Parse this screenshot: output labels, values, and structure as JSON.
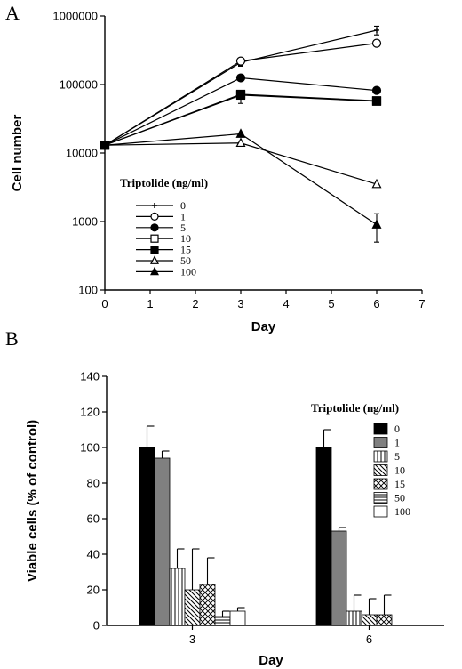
{
  "chart_data": [
    {
      "panel": "A",
      "type": "line",
      "scale_y": "log",
      "xlabel": "Day",
      "ylabel": "Cell number",
      "xlim": [
        0,
        7
      ],
      "ylim": [
        100,
        1000000
      ],
      "xticks": [
        "0",
        "1",
        "2",
        "3",
        "4",
        "5",
        "6",
        "7"
      ],
      "yticks": [
        "100",
        "1000",
        "10000",
        "100000",
        "1000000"
      ],
      "legend_title": "Triptolide (ng/ml)",
      "legend_position": "center-left",
      "x": [
        0,
        3,
        6
      ],
      "series": [
        {
          "name": "0",
          "marker": "cross",
          "values": [
            13000,
            210000,
            620000
          ],
          "err_up": [
            0,
            20000,
            90000
          ],
          "err_down": [
            0,
            20000,
            90000
          ]
        },
        {
          "name": "1",
          "marker": "circle-open",
          "values": [
            13000,
            220000,
            400000
          ],
          "err_up": [
            0,
            0,
            0
          ],
          "err_down": [
            0,
            35000,
            0
          ]
        },
        {
          "name": "5",
          "marker": "circle-filled",
          "values": [
            13000,
            125000,
            82000
          ],
          "err_up": [
            0,
            0,
            0
          ],
          "err_down": [
            0,
            0,
            0
          ]
        },
        {
          "name": "10",
          "marker": "square-open",
          "values": [
            13000,
            70000,
            57000
          ],
          "err_up": [
            0,
            0,
            0
          ],
          "err_down": [
            0,
            17000,
            0
          ]
        },
        {
          "name": "15",
          "marker": "square-filled",
          "values": [
            13000,
            72000,
            58000
          ],
          "err_up": [
            0,
            0,
            0
          ],
          "err_down": [
            0,
            0,
            0
          ]
        },
        {
          "name": "50",
          "marker": "triangle-open",
          "values": [
            13000,
            14000,
            3500
          ],
          "err_up": [
            0,
            0,
            0
          ],
          "err_down": [
            0,
            0,
            0
          ]
        },
        {
          "name": "100",
          "marker": "triangle-filled",
          "values": [
            13000,
            19000,
            900
          ],
          "err_up": [
            0,
            0,
            400
          ],
          "err_down": [
            0,
            0,
            400
          ]
        }
      ]
    },
    {
      "panel": "B",
      "type": "bar",
      "xlabel": "Day",
      "ylabel": "Viable cells (% of control)",
      "categories": [
        "3",
        "6"
      ],
      "ylim": [
        0,
        140
      ],
      "yticks": [
        "0",
        "20",
        "40",
        "60",
        "80",
        "100",
        "120",
        "140"
      ],
      "legend_title": "Triptolide (ng/ml)",
      "legend_position": "top-right",
      "series": [
        {
          "name": "0",
          "pattern": "solid-black",
          "values": [
            100,
            100
          ],
          "err": [
            12,
            10
          ]
        },
        {
          "name": "1",
          "pattern": "solid-gray",
          "values": [
            94,
            53
          ],
          "err": [
            4,
            2
          ]
        },
        {
          "name": "5",
          "pattern": "vertical-lines",
          "values": [
            32,
            8
          ],
          "err": [
            11,
            9
          ]
        },
        {
          "name": "10",
          "pattern": "diagonal-lines",
          "values": [
            20,
            6
          ],
          "err": [
            23,
            9
          ]
        },
        {
          "name": "15",
          "pattern": "checker",
          "values": [
            23,
            6
          ],
          "err": [
            15,
            11
          ]
        },
        {
          "name": "50",
          "pattern": "horizontal-lines",
          "values": [
            5,
            0
          ],
          "err": [
            3,
            0
          ]
        },
        {
          "name": "100",
          "pattern": "white",
          "values": [
            8,
            0
          ],
          "err": [
            2,
            0
          ]
        }
      ]
    }
  ]
}
